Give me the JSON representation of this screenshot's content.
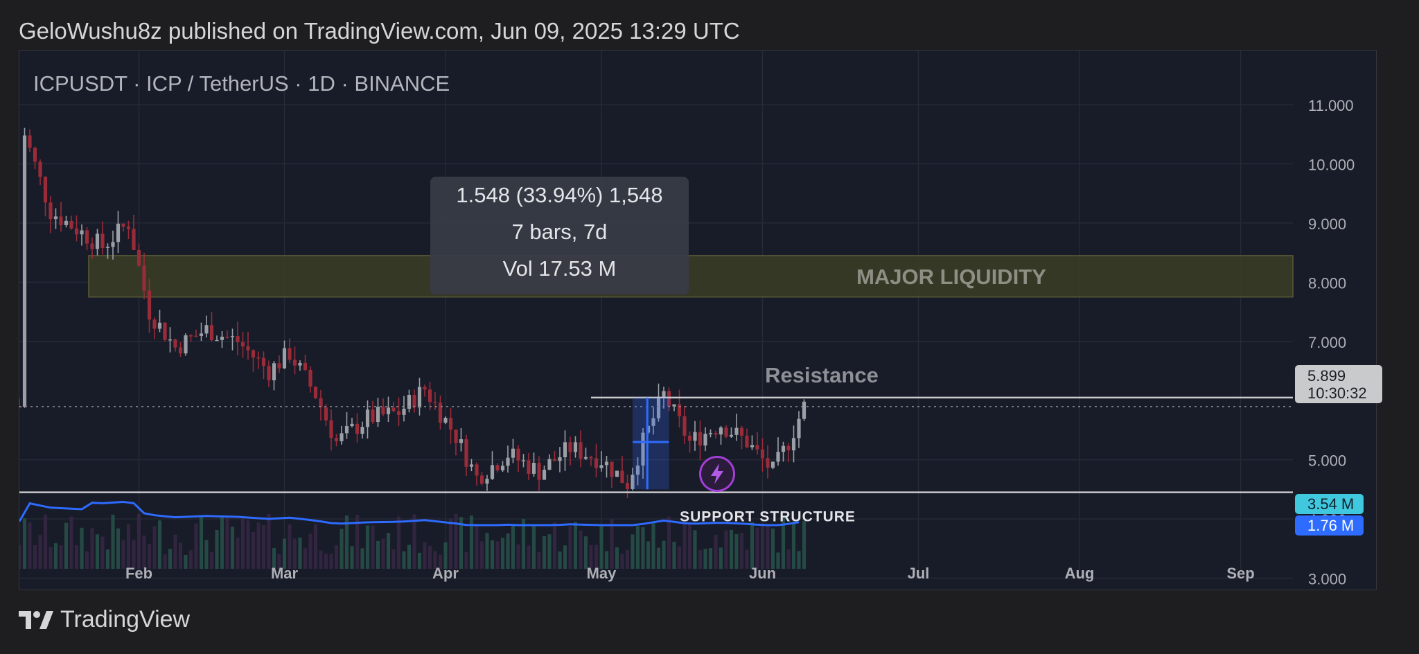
{
  "header": {
    "published": "GeloWushu8z published on TradingView.com, Jun 09, 2025 13:29 UTC"
  },
  "footer": {
    "brand": "TradingView",
    "logo_icon": "tradingview-logo-icon"
  },
  "colors": {
    "up": "#9aa0a6",
    "down": "#9a2c3a",
    "volume_ma": "#2e6bff",
    "zone_fill": "#3b3d25",
    "accent_cyan": "#3fc8de"
  },
  "chart_data": {
    "type": "candlestick",
    "symbol_line": "ICPUSDT · ICP / TetherUS · 1D · BINANCE",
    "x_ticks": [
      "Feb",
      "Mar",
      "Apr",
      "May",
      "Jun",
      "Jul",
      "Aug",
      "Sep"
    ],
    "y_ticks": [
      "11.000",
      "10.000",
      "9.000",
      "8.000",
      "7.000",
      "5.000",
      "4.000",
      "3.000"
    ],
    "ylim": [
      2.9,
      11.2
    ],
    "current_price": {
      "value": "5.899",
      "countdown": "10:30:32"
    },
    "volume_badges": [
      {
        "label": "3.54 M"
      },
      {
        "label": "1.76 M"
      }
    ],
    "annotations": {
      "zone_label": "MAJOR LIQUIDITY",
      "zone_range": [
        7.75,
        8.45
      ],
      "resistance_label": "Resistance",
      "resistance_level": 6.05,
      "support_label": "SUPPORT STRUCTURE",
      "support_level": 4.45
    },
    "measure": {
      "line1": "1.548 (33.94%) 1,548",
      "line2": "7 bars, 7d",
      "line3": "Vol 17.53 M"
    },
    "price_path": [
      {
        "date": "2025-01-10",
        "close": 10.5
      },
      {
        "date": "2025-01-15",
        "close": 9.2
      },
      {
        "date": "2025-01-20",
        "close": 8.9
      },
      {
        "date": "2025-01-25",
        "close": 8.6
      },
      {
        "date": "2025-01-30",
        "close": 9.0
      },
      {
        "date": "2025-02-03",
        "close": 7.5
      },
      {
        "date": "2025-02-08",
        "close": 6.9
      },
      {
        "date": "2025-02-14",
        "close": 7.2
      },
      {
        "date": "2025-02-20",
        "close": 7.0
      },
      {
        "date": "2025-02-26",
        "close": 6.5
      },
      {
        "date": "2025-03-02",
        "close": 6.8
      },
      {
        "date": "2025-03-07",
        "close": 6.1
      },
      {
        "date": "2025-03-11",
        "close": 5.3
      },
      {
        "date": "2025-03-17",
        "close": 5.7
      },
      {
        "date": "2025-03-23",
        "close": 5.8
      },
      {
        "date": "2025-03-28",
        "close": 6.2
      },
      {
        "date": "2025-04-03",
        "close": 5.4
      },
      {
        "date": "2025-04-07",
        "close": 4.7
      },
      {
        "date": "2025-04-13",
        "close": 5.1
      },
      {
        "date": "2025-04-19",
        "close": 4.8
      },
      {
        "date": "2025-04-25",
        "close": 5.2
      },
      {
        "date": "2025-05-01",
        "close": 5.0
      },
      {
        "date": "2025-05-06",
        "close": 4.6
      },
      {
        "date": "2025-05-09",
        "close": 5.3
      },
      {
        "date": "2025-05-13",
        "close": 6.1
      },
      {
        "date": "2025-05-18",
        "close": 5.3
      },
      {
        "date": "2025-05-24",
        "close": 5.6
      },
      {
        "date": "2025-05-29",
        "close": 5.3
      },
      {
        "date": "2025-06-03",
        "close": 4.8
      },
      {
        "date": "2025-06-06",
        "close": 5.3
      },
      {
        "date": "2025-06-09",
        "close": 5.9
      }
    ]
  }
}
